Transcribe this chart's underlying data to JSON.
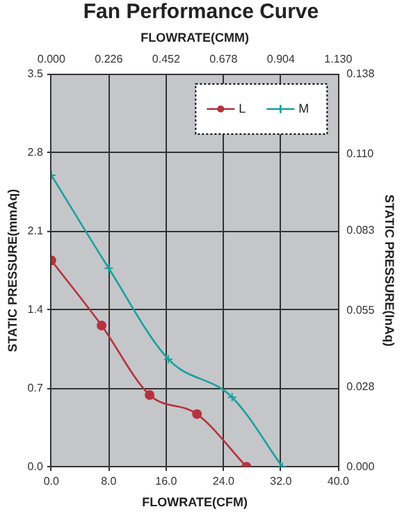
{
  "chart_data": {
    "type": "line",
    "title": "Fan Performance Curve",
    "xlabel": "FLOWRATE(CFM)",
    "x2label": "FLOWRATE(CMM)",
    "ylabel": "STATIC PRESSURE(mmAq)",
    "y2label": "STATIC PRESSURE(InAq)",
    "series": [
      {
        "name": "L",
        "color": "#b5323e",
        "marker": "circle",
        "x": [
          0,
          7,
          13.7,
          20.3,
          27.2
        ],
        "values": [
          1.84,
          1.26,
          0.64,
          0.47,
          0
        ]
      },
      {
        "name": "M",
        "color": "#1aa0a0",
        "marker": "cross",
        "x": [
          0,
          8,
          16.3,
          25.2,
          32.2
        ],
        "values": [
          2.6,
          1.77,
          0.96,
          0.62,
          0
        ]
      }
    ],
    "xlim": [
      0,
      40
    ],
    "xticks": [
      {
        "value": 0,
        "label": "0.0"
      },
      {
        "value": 8,
        "label": "8.0"
      },
      {
        "value": 16,
        "label": "16.0"
      },
      {
        "value": 24,
        "label": "24.0"
      },
      {
        "value": 32,
        "label": "32.0"
      },
      {
        "value": 40,
        "label": "40.0"
      }
    ],
    "x2lim": [
      0,
      1.13
    ],
    "x2ticks": [
      {
        "value": 0,
        "label": "0.000"
      },
      {
        "value": 0.226,
        "label": "0.226"
      },
      {
        "value": 0.452,
        "label": "0.452"
      },
      {
        "value": 0.678,
        "label": "0.678"
      },
      {
        "value": 0.904,
        "label": "0.904"
      },
      {
        "value": 1.13,
        "label": "1.130"
      }
    ],
    "ylim": [
      0,
      3.5
    ],
    "yticks": [
      {
        "value": 0,
        "label": "0.0"
      },
      {
        "value": 0.7,
        "label": "0.7"
      },
      {
        "value": 1.4,
        "label": "1.4"
      },
      {
        "value": 2.1,
        "label": "2.1"
      },
      {
        "value": 2.8,
        "label": "2.8"
      },
      {
        "value": 3.5,
        "label": "3.5"
      }
    ],
    "y2lim": [
      0,
      0.138
    ],
    "y2ticks": [
      {
        "value": 0,
        "label": "0.000"
      },
      {
        "value": 0.028,
        "label": "0.028"
      },
      {
        "value": 0.055,
        "label": "0.055"
      },
      {
        "value": 0.083,
        "label": "0.083"
      },
      {
        "value": 0.11,
        "label": "0.110"
      },
      {
        "value": 0.138,
        "label": "0.138"
      }
    ],
    "grid": true,
    "legend": "top right"
  }
}
